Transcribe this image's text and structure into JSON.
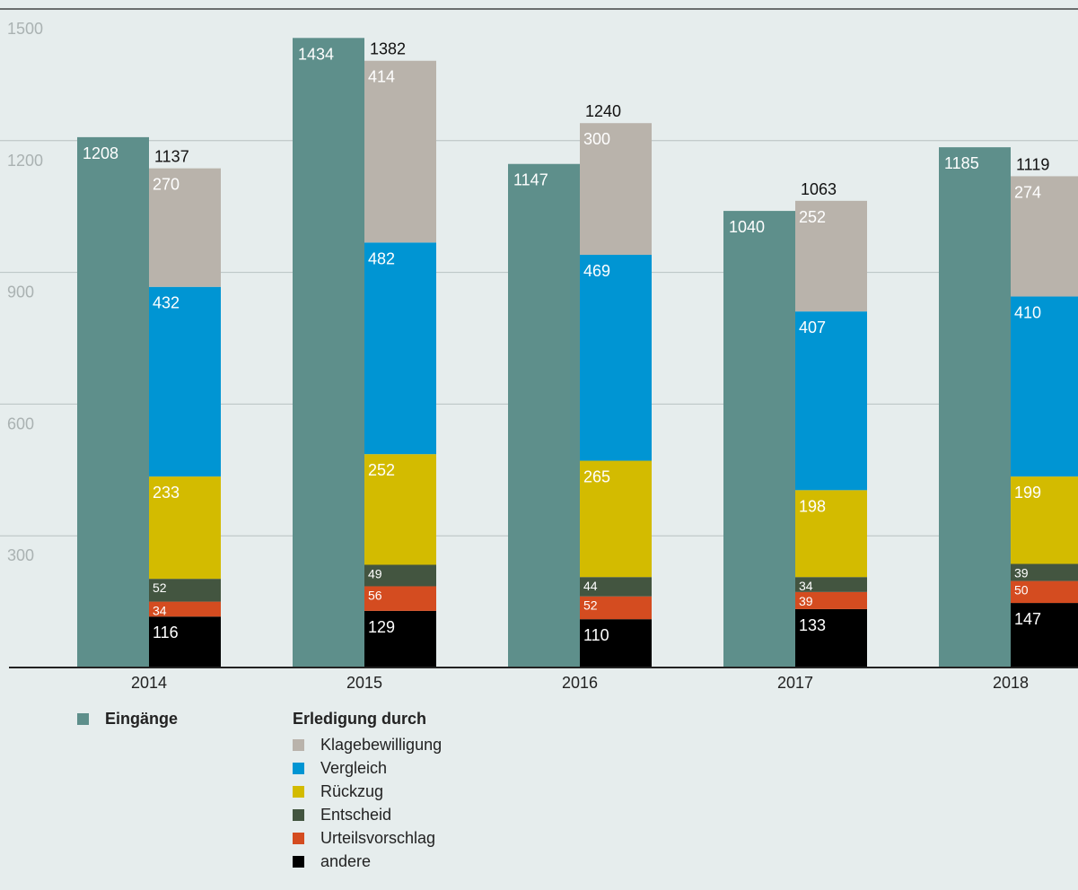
{
  "chart_data": {
    "type": "bar",
    "categories": [
      "2014",
      "2015",
      "2016",
      "2017",
      "2018"
    ],
    "ylim": [
      0,
      1500
    ],
    "yticks": [
      300,
      600,
      900,
      1200,
      1500
    ],
    "grid": true,
    "incoming": {
      "name": "Eingänge",
      "color": "#5e8f8b",
      "values": [
        1208,
        1434,
        1147,
        1040,
        1185
      ]
    },
    "settled_group_label": "Erledigung durch",
    "settled_totals": [
      1137,
      1382,
      1240,
      1063,
      1119
    ],
    "series": [
      {
        "name": "andere",
        "color": "#000000",
        "values": [
          116,
          129,
          110,
          133,
          147
        ]
      },
      {
        "name": "Urteilsvorschlag",
        "color": "#d44c20",
        "values": [
          34,
          56,
          52,
          39,
          50
        ]
      },
      {
        "name": "Entscheid",
        "color": "#435540",
        "values": [
          52,
          49,
          44,
          34,
          39
        ]
      },
      {
        "name": "Rückzug",
        "color": "#d3bb00",
        "values": [
          233,
          252,
          265,
          198,
          199
        ]
      },
      {
        "name": "Vergleich",
        "color": "#0095d3",
        "values": [
          432,
          482,
          469,
          407,
          410
        ]
      },
      {
        "name": "Klagebewilligung",
        "color": "#b9b3ab",
        "values": [
          270,
          414,
          300,
          252,
          274
        ]
      }
    ],
    "legend_position": "bottom-left"
  },
  "legend": {
    "incoming_label": "Eingänge",
    "settled_heading": "Erledigung durch",
    "settled_items": [
      "Klagebewilligung",
      "Vergleich",
      "Rückzug",
      "Entscheid",
      "Urteilsvorschlag",
      "andere"
    ]
  }
}
